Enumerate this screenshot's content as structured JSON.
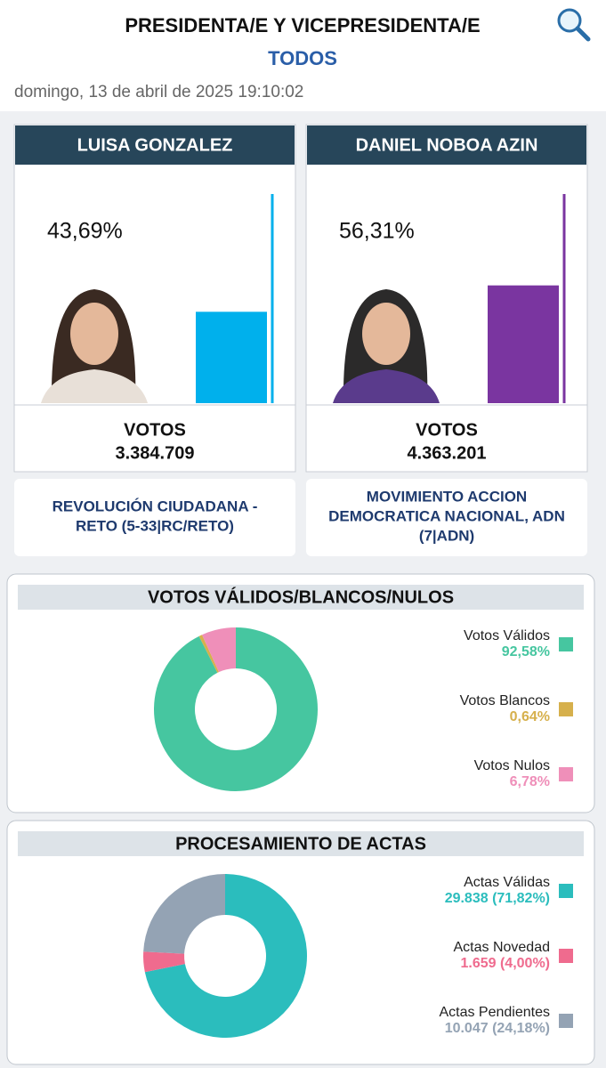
{
  "header": {
    "title": "PRESIDENTA/E Y VICEPRESIDENTA/E",
    "subtitle": "TODOS",
    "date": "domingo, 13 de abril de 2025 19:10:02"
  },
  "candidates": {
    "ylim": [
      0,
      100
    ],
    "items": [
      {
        "name": "LUISA GONZALEZ",
        "value": 43.69,
        "value_label": "43,69%",
        "color": "#00b0ec",
        "votes_title": "VOTOS",
        "votes": "3.384.709",
        "party_lines": [
          "REVOLUCIÓN CIUDADANA -",
          "RETO (5-33|RC/RETO)"
        ]
      },
      {
        "name": "DANIEL NOBOA AZIN",
        "value": 56.31,
        "value_label": "56,31%",
        "color": "#7a35a0",
        "votes_title": "VOTOS",
        "votes": "4.363.201",
        "party_lines": [
          "MOVIMIENTO ACCION",
          "DEMOCRATICA NACIONAL, ADN",
          "(7|ADN)"
        ]
      }
    ]
  },
  "chart_data": [
    {
      "type": "donut",
      "title": "VOTOS VÁLIDOS/BLANCOS/NULOS",
      "categories": [
        "Votos Válidos",
        "Votos Blancos",
        "Votos Nulos"
      ],
      "values": [
        92.58,
        0.64,
        6.78
      ],
      "value_labels": [
        "92,58%",
        "0,64%",
        "6,78%"
      ],
      "colors": [
        "#46c6a0",
        "#d6b04c",
        "#ef8fb9"
      ]
    },
    {
      "type": "donut",
      "title": "PROCESAMIENTO DE ACTAS",
      "categories": [
        "Actas Válidas",
        "Actas Novedad",
        "Actas Pendientes"
      ],
      "values": [
        71.82,
        4.0,
        24.18
      ],
      "value_labels": [
        "29.838 (71,82%)",
        "1.659 (4,00%)",
        "10.047 (24,18%)"
      ],
      "colors": [
        "#2bbdbd",
        "#ef6b8e",
        "#94a3b4"
      ]
    }
  ]
}
